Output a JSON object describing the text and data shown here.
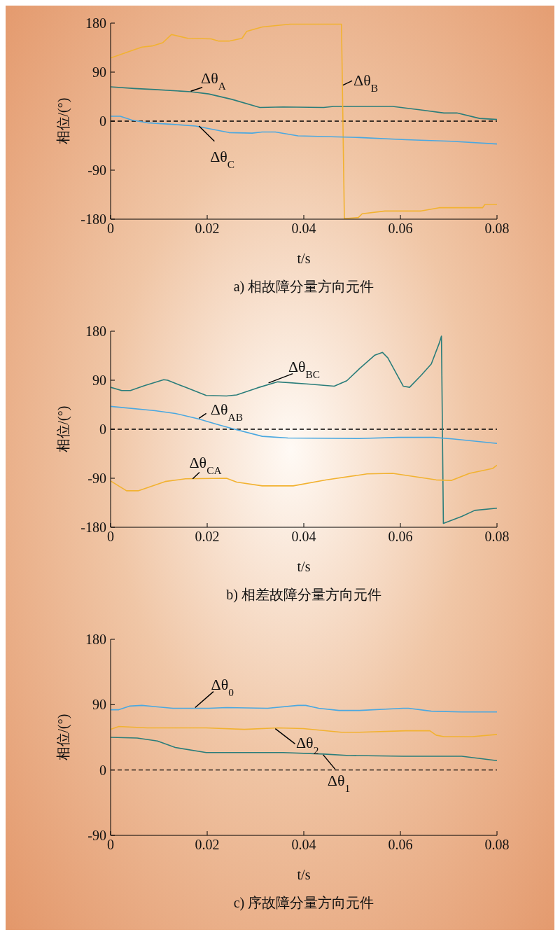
{
  "chart_data": [
    {
      "type": "line",
      "title": "a) 相故障分量方向元件",
      "xlabel": "t/s",
      "ylabel": "相位/(°)",
      "xlim": [
        0,
        0.08
      ],
      "xticks": [
        0,
        0.02,
        0.04,
        0.06,
        0.08
      ],
      "ylim": [
        -180,
        180
      ],
      "yticks": [
        -180,
        -90,
        0,
        90,
        180
      ],
      "ref_lines": [
        {
          "axis": "y",
          "value": 0,
          "color": "#000000",
          "line_style": "dashed"
        }
      ],
      "series": [
        {
          "name": "Δθ$_{A}$",
          "color": "#2a7d7a",
          "x": [
            0,
            0.0049,
            0.0092,
            0.0166,
            0.0203,
            0.0251,
            0.0309,
            0.0357,
            0.0441,
            0.0462,
            0.0584,
            0.0648,
            0.069,
            0.0717,
            0.0764,
            0.08
          ],
          "values": [
            63,
            60,
            58,
            54,
            50,
            40,
            25,
            26,
            25,
            27,
            27,
            20,
            15,
            15,
            5,
            3
          ]
        },
        {
          "name": "Δθ$_{B}$",
          "color": "#f2b230",
          "x": [
            0,
            0.0049,
            0.0065,
            0.0086,
            0.0108,
            0.0126,
            0.016,
            0.0208,
            0.0224,
            0.0245,
            0.0272,
            0.0282,
            0.0314,
            0.0372,
            0.0478,
            0.0484,
            0.0513,
            0.0521,
            0.0568,
            0.0643,
            0.068,
            0.077,
            0.0775,
            0.08
          ],
          "values": [
            116,
            131,
            136,
            138,
            144,
            159,
            152,
            151,
            147,
            147,
            152,
            165,
            173,
            178,
            178,
            -179,
            -177,
            -170,
            -165,
            -165,
            -159,
            -159,
            -153,
            -153
          ]
        },
        {
          "name": "Δθ$_{C}$",
          "color": "#4aa8e0",
          "x": [
            0,
            0.002,
            0.0044,
            0.0076,
            0.0129,
            0.0176,
            0.0245,
            0.0293,
            0.0314,
            0.0341,
            0.0388,
            0.0515,
            0.0611,
            0.0706,
            0.08
          ],
          "values": [
            9,
            9,
            2,
            -3,
            -6,
            -9,
            -21,
            -22,
            -20,
            -20,
            -27,
            -30,
            -34,
            -37,
            -42
          ]
        }
      ]
    },
    {
      "type": "line",
      "title": "b) 相差故障分量方向元件",
      "xlabel": "t/s",
      "ylabel": "相位/(°)",
      "xlim": [
        0,
        0.08
      ],
      "xticks": [
        0,
        0.02,
        0.04,
        0.06,
        0.08
      ],
      "ylim": [
        -180,
        180
      ],
      "yticks": [
        -180,
        -90,
        0,
        90,
        180
      ],
      "ref_lines": [
        {
          "axis": "y",
          "value": 0,
          "color": "#000000",
          "line_style": "dashed"
        }
      ],
      "series": [
        {
          "name": "Δθ$_{BC}$",
          "color": "#2a7d7a",
          "x": [
            0,
            0.0023,
            0.0041,
            0.007,
            0.011,
            0.0118,
            0.0155,
            0.0198,
            0.024,
            0.0261,
            0.0304,
            0.0346,
            0.041,
            0.0463,
            0.0489,
            0.0515,
            0.0547,
            0.0563,
            0.0574,
            0.0606,
            0.0619,
            0.0643,
            0.0664,
            0.068,
            0.0685,
            0.0689,
            0.0727,
            0.0754,
            0.08
          ],
          "values": [
            77,
            71,
            71,
            80,
            91,
            90,
            77,
            62,
            61,
            63,
            76,
            87,
            83,
            79,
            89,
            111,
            136,
            141,
            131,
            79,
            77,
            99,
            120,
            157,
            171,
            -173,
            -160,
            -149,
            -145
          ]
        },
        {
          "name": "Δθ$_{AB}$",
          "color": "#4aa8e0",
          "x": [
            0,
            0.0092,
            0.0134,
            0.0182,
            0.0224,
            0.0261,
            0.0314,
            0.0367,
            0.0515,
            0.0595,
            0.0669,
            0.0711,
            0.08
          ],
          "values": [
            42,
            34,
            29,
            19,
            8,
            -1,
            -13,
            -16,
            -17,
            -15,
            -15,
            -18,
            -26
          ]
        },
        {
          "name": "Δθ$_{CA}$",
          "color": "#f2b230",
          "x": [
            0,
            0.0033,
            0.0057,
            0.0113,
            0.0155,
            0.024,
            0.0261,
            0.0314,
            0.0378,
            0.0447,
            0.0531,
            0.0584,
            0.0674,
            0.0706,
            0.0743,
            0.0791,
            0.08
          ],
          "values": [
            -95,
            -113,
            -113,
            -96,
            -91,
            -90,
            -97,
            -104,
            -104,
            -93,
            -82,
            -81,
            -93,
            -94,
            -81,
            -72,
            -66
          ]
        }
      ]
    },
    {
      "type": "line",
      "title": "c) 序故障分量方向元件",
      "xlabel": "t/s",
      "ylabel": "相位/(°)",
      "xlim": [
        0,
        0.08
      ],
      "xticks": [
        0,
        0.02,
        0.04,
        0.06,
        0.08
      ],
      "ylim": [
        -90,
        180
      ],
      "yticks": [
        -90,
        0,
        90,
        180
      ],
      "ref_lines": [
        {
          "axis": "y",
          "value": 0,
          "color": "#000000",
          "line_style": "dashed"
        }
      ],
      "series": [
        {
          "name": "Δθ$_{0}$",
          "color": "#4aa8e0",
          "x": [
            0,
            0.0017,
            0.0039,
            0.0065,
            0.0097,
            0.0129,
            0.0203,
            0.024,
            0.0325,
            0.0388,
            0.0404,
            0.0431,
            0.0473,
            0.0515,
            0.0606,
            0.0617,
            0.0664,
            0.0727,
            0.08
          ],
          "values": [
            83,
            83,
            88,
            89,
            87,
            85,
            85,
            86,
            85,
            89,
            89,
            85,
            82,
            82,
            85,
            85,
            81,
            80,
            80
          ]
        },
        {
          "name": "Δθ$_{2}$",
          "color": "#f2b230",
          "x": [
            0,
            0.0017,
            0.0076,
            0.0198,
            0.0277,
            0.0346,
            0.0399,
            0.0478,
            0.0515,
            0.0611,
            0.0661,
            0.0674,
            0.069,
            0.0749,
            0.08
          ],
          "values": [
            56,
            60,
            58,
            58,
            56,
            58,
            57,
            52,
            52,
            54,
            54,
            48,
            46,
            46,
            49
          ]
        },
        {
          "name": "Δθ$_{1}$",
          "color": "#2a7d7a",
          "x": [
            0,
            0.0055,
            0.0097,
            0.0134,
            0.0198,
            0.0357,
            0.0441,
            0.0494,
            0.0606,
            0.0727,
            0.08
          ],
          "values": [
            45,
            44,
            40,
            31,
            24,
            24,
            22,
            20,
            19,
            19,
            13
          ]
        }
      ]
    }
  ]
}
